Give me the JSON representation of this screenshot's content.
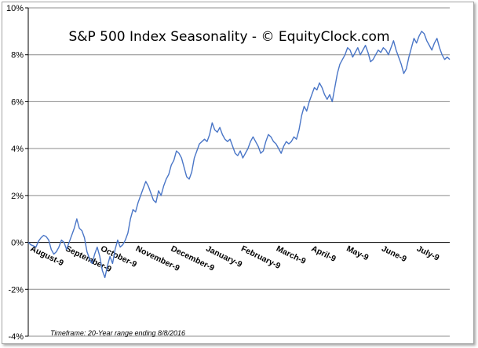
{
  "chart_data": {
    "type": "line",
    "title": "S&P 500 Index Seasonality - © EquityClock.com",
    "footnote": "Timeframe: 20-Year range ending 8/8/2016",
    "xlabel": "",
    "ylabel": "",
    "ylim": [
      -4,
      10
    ],
    "yticks": [
      -4,
      -2,
      0,
      2,
      4,
      6,
      8,
      10
    ],
    "ytick_labels": [
      "-4%",
      "-2%",
      "0%",
      "2%",
      "4%",
      "6%",
      "8%",
      "10%"
    ],
    "xtick_labels": [
      "August-9",
      "September-9",
      "October-9",
      "November-9",
      "December-9",
      "January-9",
      "February-9",
      "March-9",
      "April-9",
      "May-9",
      "June-9",
      "July-9"
    ],
    "grid": "horizontal",
    "legend": "none",
    "line_color": "#4a76c7",
    "series": [
      {
        "values": [
          0,
          -0.1,
          -0.15,
          -0.2,
          0.05,
          0.2,
          0.3,
          0.25,
          0.1,
          -0.3,
          -0.5,
          -0.4,
          -0.2,
          0.1,
          0.0,
          -0.3,
          0.0,
          0.3,
          0.6,
          1.0,
          0.6,
          0.5,
          0.2,
          -0.4,
          -0.7,
          -0.9,
          -0.5,
          -0.2,
          -0.6,
          -1.2,
          -1.5,
          -1.0,
          -0.6,
          -0.9,
          -0.3,
          0.1,
          -0.2,
          -0.1,
          0.1,
          0.4,
          1.0,
          1.4,
          1.3,
          1.7,
          2.0,
          2.3,
          2.6,
          2.4,
          2.1,
          1.8,
          1.7,
          2.2,
          2.0,
          2.4,
          2.7,
          2.9,
          3.3,
          3.5,
          3.9,
          3.8,
          3.6,
          3.2,
          2.8,
          2.7,
          3.0,
          3.6,
          3.9,
          4.2,
          4.3,
          4.4,
          4.3,
          4.6,
          5.1,
          4.8,
          4.7,
          4.9,
          4.6,
          4.4,
          4.3,
          4.4,
          4.1,
          3.8,
          3.7,
          3.9,
          3.6,
          3.8,
          4.0,
          4.3,
          4.5,
          4.3,
          4.1,
          3.8,
          3.9,
          4.3,
          4.6,
          4.5,
          4.3,
          4.2,
          4.0,
          3.8,
          4.1,
          4.3,
          4.2,
          4.3,
          4.5,
          4.4,
          4.8,
          5.4,
          5.8,
          5.6,
          6.0,
          6.3,
          6.6,
          6.5,
          6.8,
          6.6,
          6.3,
          6.1,
          6.3,
          6.0,
          6.6,
          7.2,
          7.6,
          7.8,
          8.0,
          8.3,
          8.2,
          7.9,
          8.1,
          8.3,
          8.0,
          8.2,
          8.4,
          8.1,
          7.7,
          7.8,
          8.0,
          8.2,
          8.1,
          8.3,
          8.2,
          8.0,
          8.3,
          8.6,
          8.2,
          7.9,
          7.6,
          7.2,
          7.4,
          7.9,
          8.3,
          8.7,
          8.5,
          8.8,
          9.0,
          8.9,
          8.6,
          8.4,
          8.2,
          8.5,
          8.7,
          8.3,
          8.0,
          7.8,
          7.9,
          7.8
        ]
      }
    ]
  }
}
